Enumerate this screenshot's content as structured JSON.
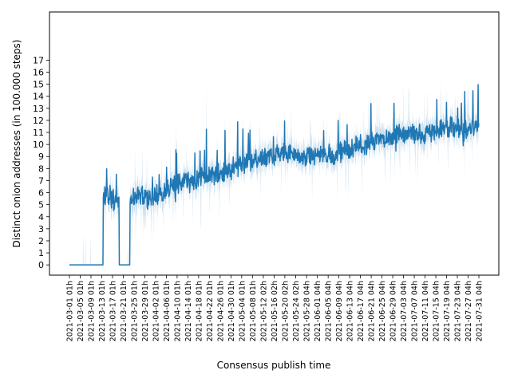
{
  "chart_data": {
    "type": "line",
    "title": "",
    "xlabel": "Consensus publish time",
    "ylabel": "Distinct onion addresses (in 100.000 steps)",
    "ylim": [
      -0.85,
      21
    ],
    "yticks": [
      0,
      1,
      2,
      3,
      4,
      5,
      6,
      7,
      8,
      9,
      10,
      11,
      12,
      13,
      14,
      15,
      16,
      17
    ],
    "x_range": [
      "2021-03-01 01h",
      "2021-07-31 04h"
    ],
    "xticks": [
      "2021-03-01 01h",
      "2021-03-05 01h",
      "2021-03-09 01h",
      "2021-03-13 01h",
      "2021-03-17 01h",
      "2021-03-21 01h",
      "2021-03-25 01h",
      "2021-03-29 01h",
      "2021-04-02 01h",
      "2021-04-06 01h",
      "2021-04-10 01h",
      "2021-04-14 01h",
      "2021-04-18 01h",
      "2021-04-22 01h",
      "2021-04-26 01h",
      "2021-04-30 01h",
      "2021-05-04 01h",
      "2021-05-08 01h",
      "2021-05-12 02h",
      "2021-05-16 02h",
      "2021-05-20 02h",
      "2021-05-24 02h",
      "2021-05-28 04h",
      "2021-06-01 04h",
      "2021-06-05 04h",
      "2021-06-09 04h",
      "2021-06-13 04h",
      "2021-06-17 04h",
      "2021-06-21 04h",
      "2021-06-25 04h",
      "2021-06-29 04h",
      "2021-07-03 04h",
      "2021-07-07 04h",
      "2021-07-11 04h",
      "2021-07-15 04h",
      "2021-07-19 04h",
      "2021-07-23 04h",
      "2021-07-27 04h",
      "2021-07-31 04h"
    ],
    "series": [
      {
        "name": "",
        "x": [
          "2021-03-01",
          "2021-03-13",
          "2021-03-14",
          "2021-03-16",
          "2021-03-18",
          "2021-03-19",
          "2021-03-20",
          "2021-03-23",
          "2021-03-24",
          "2021-03-27",
          "2021-03-31",
          "2021-04-04",
          "2021-04-08",
          "2021-04-12",
          "2021-04-16",
          "2021-04-20",
          "2021-04-24",
          "2021-04-28",
          "2021-05-02",
          "2021-05-06",
          "2021-05-10",
          "2021-05-14",
          "2021-05-18",
          "2021-05-22",
          "2021-05-26",
          "2021-05-30",
          "2021-06-03",
          "2021-06-07",
          "2021-06-11",
          "2021-06-15",
          "2021-06-19",
          "2021-06-23",
          "2021-06-27",
          "2021-07-01",
          "2021-07-05",
          "2021-07-09",
          "2021-07-13",
          "2021-07-17",
          "2021-07-21",
          "2021-07-25",
          "2021-07-29",
          "2021-07-31"
        ],
        "values": [
          0,
          0,
          5.6,
          5.8,
          5.3,
          5.2,
          0,
          0,
          5.4,
          5.7,
          5.6,
          5.8,
          6.5,
          6.9,
          7.0,
          7.4,
          7.5,
          7.8,
          8.2,
          8.5,
          8.7,
          9.0,
          9.3,
          9.2,
          9.1,
          9.0,
          9.3,
          9.0,
          9.6,
          9.8,
          10.1,
          10.2,
          10.5,
          10.8,
          11.0,
          10.9,
          11.1,
          11.3,
          11.4,
          11.2,
          11.5,
          11.8
        ],
        "color": "#1f77b4"
      }
    ],
    "grid": false,
    "legend": "none"
  }
}
